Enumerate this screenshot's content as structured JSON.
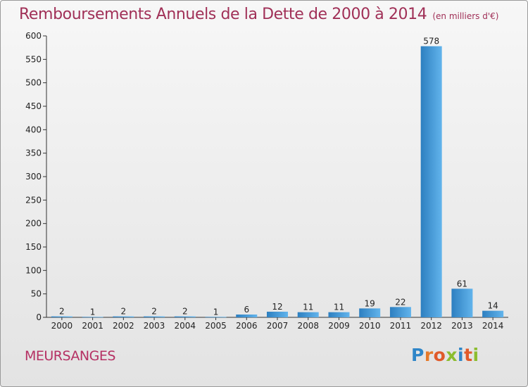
{
  "title": "Remboursements Annuels de la Dette de 2000 à 2014",
  "unit_note": "(en milliers d'€)",
  "commune": "MEURSANGES",
  "brand": {
    "letters": [
      "P",
      "r",
      "o",
      "x",
      "i",
      "t",
      "i"
    ],
    "colors": [
      "#2f86c8",
      "#e57a2a",
      "#e05a2a",
      "#8cbd2f",
      "#2f86c8",
      "#e05a2a",
      "#8cbd2f"
    ]
  },
  "colors": {
    "title": "#a03057",
    "bar_light": "#5aaee8",
    "bar_dark": "#2d7fc0"
  },
  "chart_data": {
    "type": "bar",
    "title": "Remboursements Annuels de la Dette de 2000 à 2014",
    "subtitle": "(en milliers d'€)",
    "xlabel": "",
    "ylabel": "",
    "categories": [
      "2000",
      "2001",
      "2002",
      "2003",
      "2004",
      "2005",
      "2006",
      "2007",
      "2008",
      "2009",
      "2010",
      "2011",
      "2012",
      "2013",
      "2014"
    ],
    "values": [
      2,
      1,
      2,
      2,
      2,
      1,
      6,
      12,
      11,
      11,
      19,
      22,
      578,
      61,
      14
    ],
    "ylim": [
      0,
      600
    ],
    "yticks": [
      0,
      50,
      100,
      150,
      200,
      250,
      300,
      350,
      400,
      450,
      500,
      550,
      600
    ],
    "grid": false,
    "legend": "none"
  }
}
